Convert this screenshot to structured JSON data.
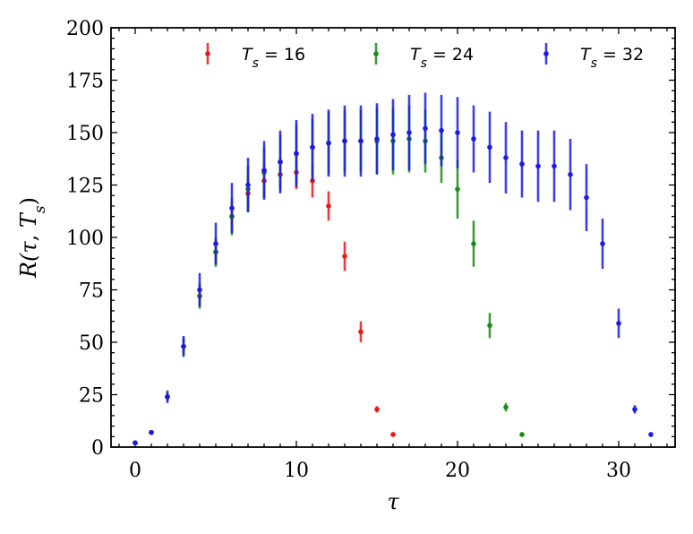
{
  "chart_data": {
    "type": "scatter",
    "title": "",
    "xlabel": "τ",
    "ylabel": "R(τ, T_s)",
    "ylabel_parts": {
      "prefix": "R(",
      "tau": "τ",
      "sep": ", ",
      "T": "T",
      "sub": "s",
      "suffix": ")"
    },
    "xlim": [
      -1.5,
      33.5
    ],
    "ylim": [
      0,
      200
    ],
    "xticks": [
      0,
      10,
      20,
      30
    ],
    "yticks": [
      0,
      25,
      50,
      75,
      100,
      125,
      150,
      175,
      200
    ],
    "grid": false,
    "legend_position": "top",
    "series": [
      {
        "name": "T_s = 16",
        "legend_parts": {
          "T": "T",
          "sub": "s",
          "rest": " = 16"
        },
        "color": "#e8191c",
        "x": [
          0,
          1,
          2,
          3,
          4,
          5,
          6,
          7,
          8,
          9,
          10,
          11,
          12,
          13,
          14,
          15,
          16
        ],
        "y": [
          2,
          7,
          24,
          48,
          72,
          93,
          110,
          121,
          127,
          130,
          131,
          127,
          115,
          91,
          55,
          18,
          6
        ],
        "err": [
          1,
          1,
          2,
          4,
          5,
          6,
          7,
          8,
          8,
          8,
          8,
          8,
          7,
          7,
          5,
          1.5,
          0.8
        ]
      },
      {
        "name": "T_s = 24",
        "legend_parts": {
          "T": "T",
          "sub": "s",
          "rest": " = 24"
        },
        "color": "#1a8a1a",
        "x": [
          0,
          1,
          2,
          3,
          4,
          5,
          6,
          7,
          8,
          9,
          10,
          11,
          12,
          13,
          14,
          15,
          16,
          17,
          18,
          19,
          20,
          21,
          22,
          23,
          24
        ],
        "y": [
          2,
          7,
          24,
          48,
          72,
          93,
          110,
          123,
          131,
          136,
          140,
          143,
          145,
          146,
          146,
          146,
          146,
          147,
          146,
          138,
          123,
          97,
          58,
          19,
          6
        ],
        "err": [
          1,
          1,
          2,
          4,
          6,
          7,
          9,
          11,
          12,
          13,
          14,
          14,
          15,
          15,
          15,
          16,
          16,
          16,
          15,
          12,
          14,
          11,
          6,
          2,
          0.8
        ]
      },
      {
        "name": "T_s = 32",
        "legend_parts": {
          "T": "T",
          "sub": "s",
          "rest": " = 32"
        },
        "color": "#1c1ce0",
        "x": [
          0,
          1,
          2,
          3,
          4,
          5,
          6,
          7,
          8,
          9,
          10,
          11,
          12,
          13,
          14,
          15,
          16,
          17,
          18,
          19,
          20,
          21,
          22,
          23,
          24,
          25,
          26,
          27,
          28,
          29,
          30,
          31,
          32
        ],
        "y": [
          2,
          7,
          24,
          48,
          75,
          97,
          114,
          125,
          132,
          136,
          140,
          143,
          145,
          146,
          146,
          147,
          149,
          150,
          152,
          151,
          150,
          147,
          143,
          138,
          135,
          134,
          134,
          130,
          119,
          97,
          59,
          18,
          6
        ],
        "err": [
          1,
          1,
          3,
          5,
          8,
          10,
          12,
          13,
          14,
          15,
          16,
          16,
          16,
          17,
          17,
          17,
          17,
          18,
          17,
          17,
          17,
          16,
          17,
          17,
          16,
          17,
          17,
          17,
          16,
          12,
          7,
          2,
          0.8
        ]
      }
    ]
  }
}
